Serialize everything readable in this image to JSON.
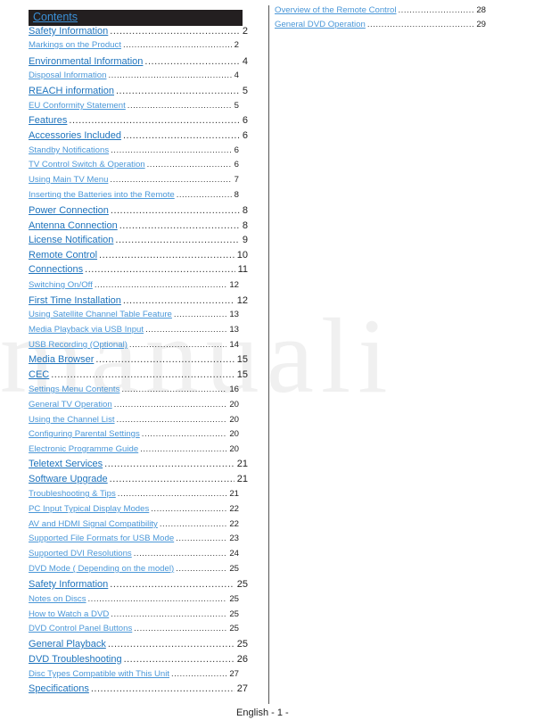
{
  "contents_title": "Contents",
  "left_column": [
    {
      "label": "Safety Information",
      "page": "2",
      "level": "main"
    },
    {
      "label": "Markings on the Product",
      "page": "2",
      "level": "sub"
    },
    {
      "label": "Environmental Information",
      "page": "4",
      "level": "main"
    },
    {
      "label": "Disposal Information",
      "page": "4",
      "level": "sub"
    },
    {
      "label": "REACH information",
      "page": "5",
      "level": "main"
    },
    {
      "label": "EU Conformity Statement",
      "page": "5",
      "level": "sub"
    },
    {
      "label": "Features",
      "page": "6",
      "level": "main"
    },
    {
      "label": "Accessories Included",
      "page": "6",
      "level": "main"
    },
    {
      "label": "Standby Notifications",
      "page": "6",
      "level": "sub"
    },
    {
      "label": "TV Control Switch & Operation",
      "page": "6",
      "level": "sub"
    },
    {
      "label": "Using Main TV Menu",
      "page": "7",
      "level": "sub"
    },
    {
      "label": "Inserting the Batteries into the Remote",
      "page": "8",
      "level": "sub"
    },
    {
      "label": "Power Connection",
      "page": "8",
      "level": "main"
    },
    {
      "label": "Antenna Connection",
      "page": "8",
      "level": "main"
    },
    {
      "label": "License Notification",
      "page": "9",
      "level": "main"
    },
    {
      "label": "Remote Control",
      "page": "10",
      "level": "main"
    },
    {
      "label": "Connections",
      "page": "11",
      "level": "main"
    },
    {
      "label": "Switching On/Off",
      "page": "12",
      "level": "sub"
    },
    {
      "label": "First Time Installation",
      "page": "12",
      "level": "main"
    },
    {
      "label": "Using Satellite Channel Table Feature",
      "page": "13",
      "level": "sub"
    },
    {
      "label": "Media Playback via USB Input",
      "page": "13",
      "level": "sub"
    },
    {
      "label": "USB Recording (Optional)",
      "page": "14",
      "level": "sub"
    },
    {
      "label": "Media Browser",
      "page": "15",
      "level": "main"
    },
    {
      "label": "CEC",
      "page": "15",
      "level": "main"
    },
    {
      "label": "Settings Menu Contents",
      "page": "16",
      "level": "sub"
    },
    {
      "label": "General TV Operation",
      "page": "20",
      "level": "sub"
    },
    {
      "label": "Using the Channel List",
      "page": "20",
      "level": "sub"
    },
    {
      "label": "Configuring Parental Settings",
      "page": "20",
      "level": "sub"
    },
    {
      "label": "Electronic Programme Guide",
      "page": "20",
      "level": "sub"
    },
    {
      "label": "Teletext Services",
      "page": "21",
      "level": "main"
    },
    {
      "label": "Software Upgrade",
      "page": "21",
      "level": "main"
    },
    {
      "label": "Troubleshooting & Tips",
      "page": "21",
      "level": "sub"
    },
    {
      "label": "PC Input Typical Display Modes",
      "page": "22",
      "level": "sub"
    },
    {
      "label": "AV and HDMI Signal Compatibility",
      "page": "22",
      "level": "sub"
    },
    {
      "label": "Supported File Formats for USB Mode",
      "page": "23",
      "level": "sub"
    },
    {
      "label": "Supported DVI Resolutions",
      "page": "24",
      "level": "sub"
    },
    {
      "label": "DVD Mode ( Depending on the model)",
      "page": "25",
      "level": "sub"
    },
    {
      "label": "Safety Information",
      "page": "25",
      "level": "main"
    },
    {
      "label": "Notes on Discs",
      "page": "25",
      "level": "sub"
    },
    {
      "label": "How to Watch a DVD",
      "page": "25",
      "level": "sub"
    },
    {
      "label": "DVD Control Panel Buttons",
      "page": "25",
      "level": "sub"
    },
    {
      "label": "General Playback",
      "page": "25",
      "level": "main"
    },
    {
      "label": "DVD Troubleshooting",
      "page": "26",
      "level": "main"
    },
    {
      "label": "Disc Types Compatible with This Unit",
      "page": "27",
      "level": "sub"
    },
    {
      "label": "Specifications",
      "page": "27",
      "level": "main"
    }
  ],
  "right_column": [
    {
      "label": "Overview of the Remote Control",
      "page": "28",
      "level": "sub"
    },
    {
      "label": "General DVD Operation",
      "page": "29",
      "level": "sub"
    }
  ],
  "watermark": "manuali",
  "footer": "English - 1 -",
  "colors": {
    "link_main": "#1f74bd",
    "link_sub": "#4a97d8",
    "header_bg": "#231f20"
  }
}
